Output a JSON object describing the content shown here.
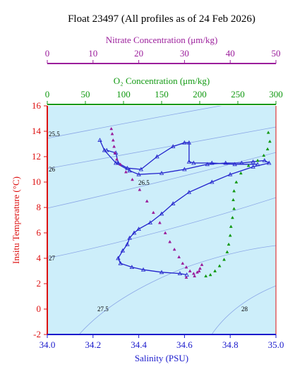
{
  "chart_data": {
    "type": "scatter",
    "title": "Float 23497  (All profiles as of 24 Feb 2026)",
    "xlabel": "Salinity (PSU)",
    "ylabel": "Insitu Temperature (°C)",
    "xlim": [
      34.0,
      35.0
    ],
    "ylim": [
      -2,
      16
    ],
    "x_ticks": [
      "34.0",
      "34.2",
      "34.4",
      "34.6",
      "34.8",
      "35.0"
    ],
    "y_ticks": [
      "-2",
      "0",
      "2",
      "4",
      "6",
      "8",
      "10",
      "12",
      "14",
      "16"
    ],
    "top_axes": [
      {
        "label": "Nitrate Concentration (μm/kg)",
        "range": [
          0,
          50
        ],
        "ticks": [
          "0",
          "10",
          "20",
          "30",
          "40",
          "50"
        ],
        "color": "#9b1d9b"
      },
      {
        "label": "O₂ Concentration (μm/kg)",
        "range": [
          0,
          300
        ],
        "ticks": [
          "0",
          "50",
          "100",
          "150",
          "200",
          "250",
          "300"
        ],
        "color": "#119911"
      }
    ],
    "background": "#cdeefa",
    "colors": {
      "ts": "#2222cc",
      "nitrate": "#9b1d9b",
      "oxygen": "#119911",
      "isopycnal": "#8aa6e6",
      "temp_axis": "#dd1111",
      "sal_axis": "#1a1acc"
    },
    "isopycnal_labels": [
      "25.5",
      "26",
      "26.5",
      "27",
      "27.5",
      "28"
    ],
    "series": [
      {
        "name": "",
        "kind": "T-S profiles",
        "color": "#2222cc",
        "x": [
          34.23,
          34.25,
          34.3,
          34.36,
          34.4,
          34.5,
          34.6,
          34.7,
          34.78,
          34.85,
          34.9,
          34.95,
          34.97,
          34.9,
          34.8,
          34.72,
          34.62,
          34.55,
          34.5,
          34.45,
          34.4,
          34.38,
          34.36,
          34.35,
          34.33,
          34.31,
          34.32,
          34.37,
          34.42,
          34.5,
          34.58,
          34.61
        ],
        "y": [
          13.3,
          12.5,
          11.5,
          10.9,
          10.6,
          10.7,
          11.0,
          11.4,
          11.5,
          11.5,
          11.6,
          11.7,
          11.5,
          11.2,
          10.6,
          10.0,
          9.2,
          8.3,
          7.5,
          6.8,
          6.3,
          6.0,
          5.6,
          5.1,
          4.6,
          4.0,
          3.6,
          3.3,
          3.1,
          2.9,
          2.8,
          2.7
        ]
      },
      {
        "name": "",
        "kind": "T-S profile (upper loop)",
        "color": "#2222cc",
        "x": [
          34.26,
          34.3,
          34.31,
          34.35,
          34.41,
          34.48,
          34.55,
          34.6,
          34.62,
          34.62,
          34.64,
          34.72,
          34.82,
          34.92
        ],
        "y": [
          12.5,
          12.3,
          11.5,
          11.1,
          11.0,
          12.0,
          12.8,
          13.1,
          13.1,
          11.6,
          11.5,
          11.5,
          11.4,
          11.4
        ]
      },
      {
        "name": "",
        "kind": "nitrate",
        "color": "#9b1d9b",
        "x": [
          14.0,
          14.2,
          14.4,
          14.6,
          14.8,
          15.2,
          16.0,
          17.2,
          18.6,
          20.2,
          21.8,
          23.2,
          24.6,
          25.8,
          26.8,
          27.8,
          28.8,
          29.6,
          30.4,
          31.2,
          32.0,
          32.8,
          33.4,
          33.8,
          33.2,
          32.2,
          30.4
        ],
        "y": [
          14.2,
          13.8,
          13.3,
          12.8,
          12.3,
          11.8,
          11.4,
          10.8,
          10.2,
          9.4,
          8.5,
          7.6,
          6.8,
          6.0,
          5.3,
          4.7,
          4.1,
          3.6,
          3.3,
          3.0,
          2.8,
          2.9,
          3.2,
          3.5,
          3.0,
          2.6,
          2.5
        ]
      },
      {
        "name": "",
        "kind": "oxygen",
        "color": "#119911",
        "x": [
          290,
          292,
          289,
          284,
          276,
          264,
          254,
          248,
          245,
          244,
          245,
          243,
          241,
          240,
          238,
          236,
          232,
          226,
          220,
          214,
          208
        ],
        "y": [
          13.9,
          13.2,
          12.6,
          12.1,
          11.7,
          11.3,
          10.7,
          10.0,
          9.3,
          8.6,
          7.9,
          7.2,
          6.5,
          5.8,
          5.1,
          4.5,
          3.9,
          3.4,
          3.0,
          2.7,
          2.6
        ]
      }
    ]
  }
}
